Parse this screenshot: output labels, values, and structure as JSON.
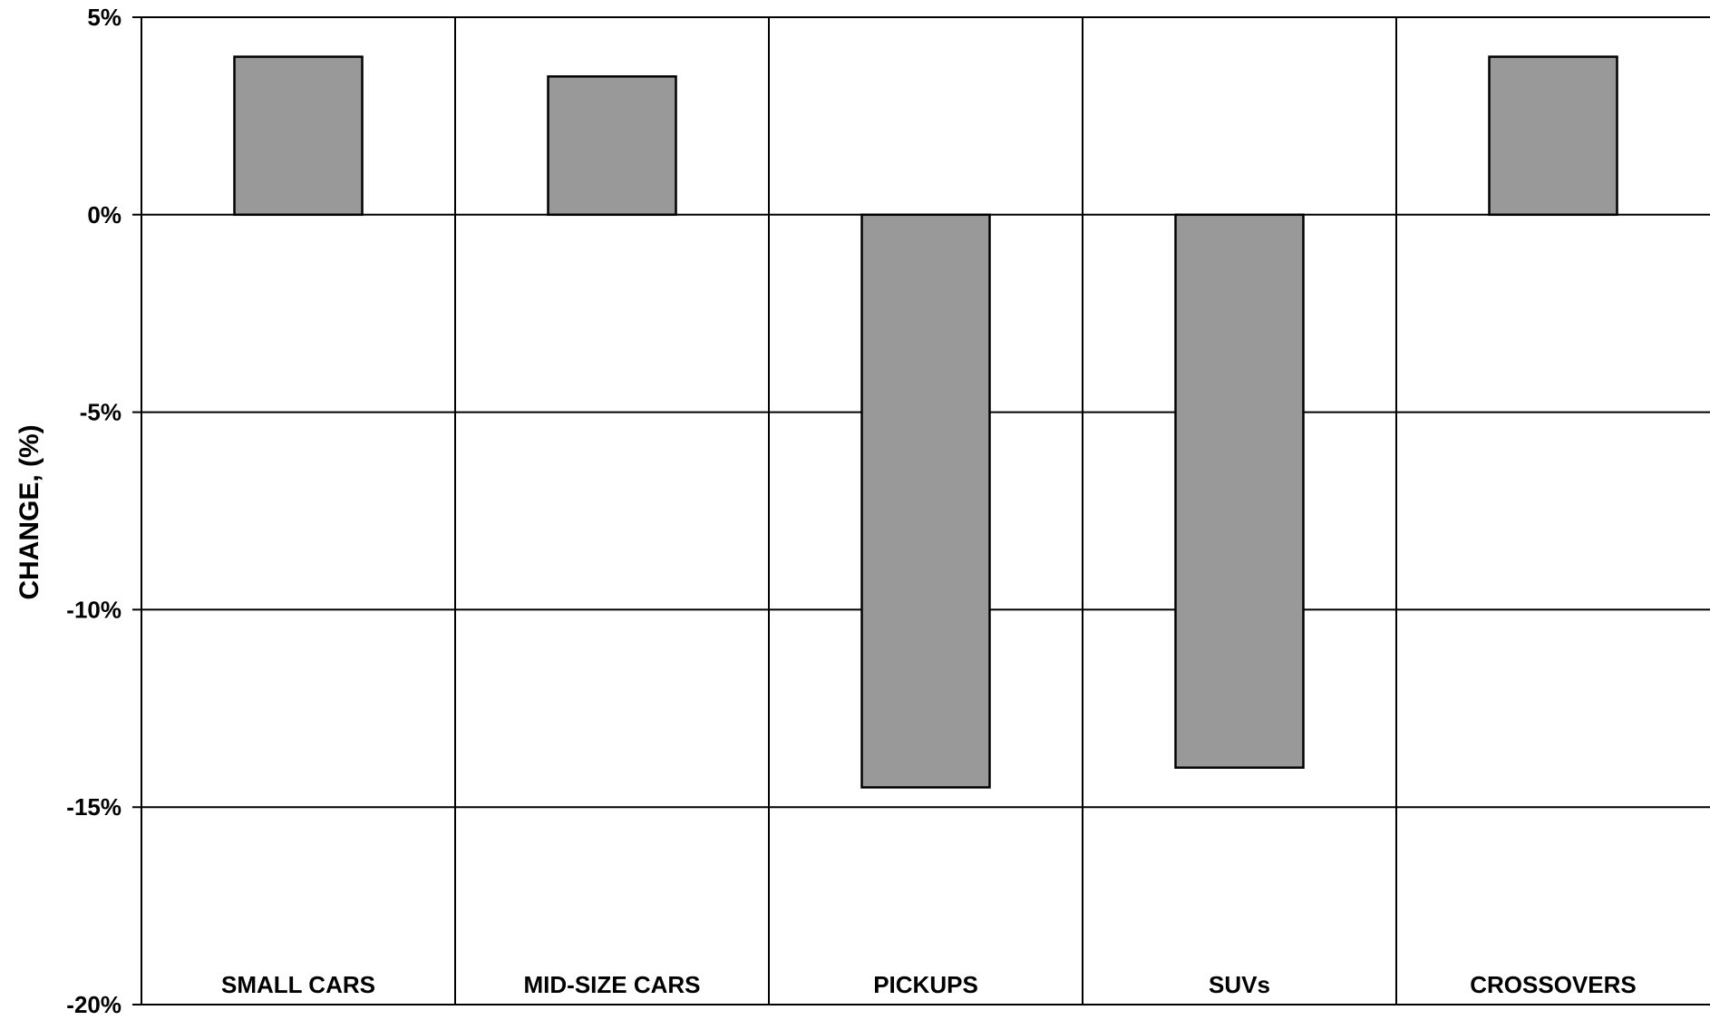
{
  "chart_data": {
    "type": "bar",
    "title": "",
    "xlabel": "",
    "ylabel": "CHANGE, (%)",
    "categories": [
      "SMALL CARS",
      "MID-SIZE CARS",
      "PICKUPS",
      "SUVs",
      "CROSSOVERS"
    ],
    "values": [
      4.0,
      3.5,
      -14.5,
      -14.0,
      4.0
    ],
    "ylim": [
      -20,
      5
    ],
    "yticks": [
      5,
      0,
      -5,
      -10,
      -15,
      -20
    ],
    "ytick_labels": [
      "5%",
      "0%",
      "-5%",
      "-10%",
      "-15%",
      "-20%"
    ],
    "grid": true,
    "legend": "none",
    "bar_color": "#999999",
    "bar_edge_color": "#000000",
    "grid_color": "#000000"
  }
}
